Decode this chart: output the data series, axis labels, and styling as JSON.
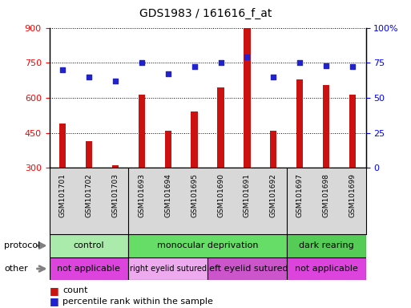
{
  "title": "GDS1983 / 161616_f_at",
  "samples": [
    "GSM101701",
    "GSM101702",
    "GSM101703",
    "GSM101693",
    "GSM101694",
    "GSM101695",
    "GSM101690",
    "GSM101691",
    "GSM101692",
    "GSM101697",
    "GSM101698",
    "GSM101699"
  ],
  "counts": [
    490,
    415,
    310,
    615,
    460,
    540,
    645,
    900,
    460,
    680,
    655,
    615
  ],
  "percentiles": [
    70,
    65,
    62,
    75,
    67,
    72,
    75,
    79,
    65,
    75,
    73,
    72
  ],
  "ylim_left": [
    300,
    900
  ],
  "ylim_right": [
    0,
    100
  ],
  "yticks_left": [
    300,
    450,
    600,
    750,
    900
  ],
  "yticks_right": [
    0,
    25,
    50,
    75,
    100
  ],
  "bar_color": "#cc1111",
  "dot_color": "#2222cc",
  "protocol_groups": [
    {
      "label": "control",
      "start": 0,
      "end": 3,
      "color": "#aaeaaa"
    },
    {
      "label": "monocular deprivation",
      "start": 3,
      "end": 9,
      "color": "#66dd66"
    },
    {
      "label": "dark rearing",
      "start": 9,
      "end": 12,
      "color": "#55cc55"
    }
  ],
  "other_groups": [
    {
      "label": "not applicable",
      "start": 0,
      "end": 3,
      "color": "#dd44dd"
    },
    {
      "label": "right eyelid sutured",
      "start": 3,
      "end": 6,
      "color": "#eeaaee"
    },
    {
      "label": "left eyelid sutured",
      "start": 6,
      "end": 9,
      "color": "#cc55cc"
    },
    {
      "label": "not applicable",
      "start": 9,
      "end": 12,
      "color": "#dd44dd"
    }
  ],
  "legend_count_label": "count",
  "legend_pct_label": "percentile rank within the sample",
  "protocol_label": "protocol",
  "other_label": "other",
  "background_color": "#d8d8d8",
  "plot_bg": "#ffffff"
}
